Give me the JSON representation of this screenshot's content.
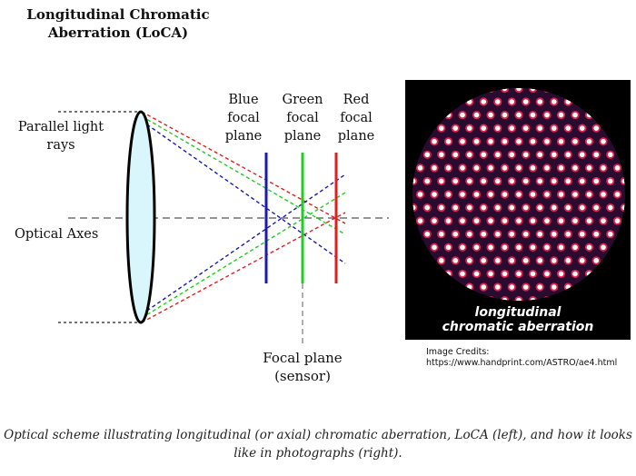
{
  "title": {
    "line1": "Longitudinal Chromatic",
    "line2": "Aberration (LoCA)"
  },
  "labels": {
    "parallel_light_rays": {
      "line1": "Parallel light",
      "line2": "rays"
    },
    "optical_axes": "Optical Axes",
    "blue_plane": {
      "line1": "Blue",
      "line2": "focal",
      "line3": "plane"
    },
    "green_plane": {
      "line1": "Green",
      "line2": "focal",
      "line3": "plane"
    },
    "red_plane": {
      "line1": "Red",
      "line2": "focal",
      "line3": "plane"
    },
    "focal_plane": {
      "line1": "Focal plane",
      "line2": "(sensor)"
    }
  },
  "photo": {
    "caption_line1": "longitudinal",
    "caption_line2": "chromatic aberration"
  },
  "credits": {
    "line1": "Image Credits:",
    "line2": "https://www.handprint.com/ASTRO/ae4.html"
  },
  "caption": "Optical scheme illustrating longitudinal (or axial) chromatic aberration, LoCA (left), and how it looks like in photographs (right).",
  "colors": {
    "blue": "#1a1ab0",
    "green": "#22cc22",
    "red": "#e02020",
    "lens_fill": "#d8f6fb",
    "photo_bg": "#2a0a2e",
    "dot_core": "#f2fff2",
    "dot_ring": "#e02050"
  }
}
